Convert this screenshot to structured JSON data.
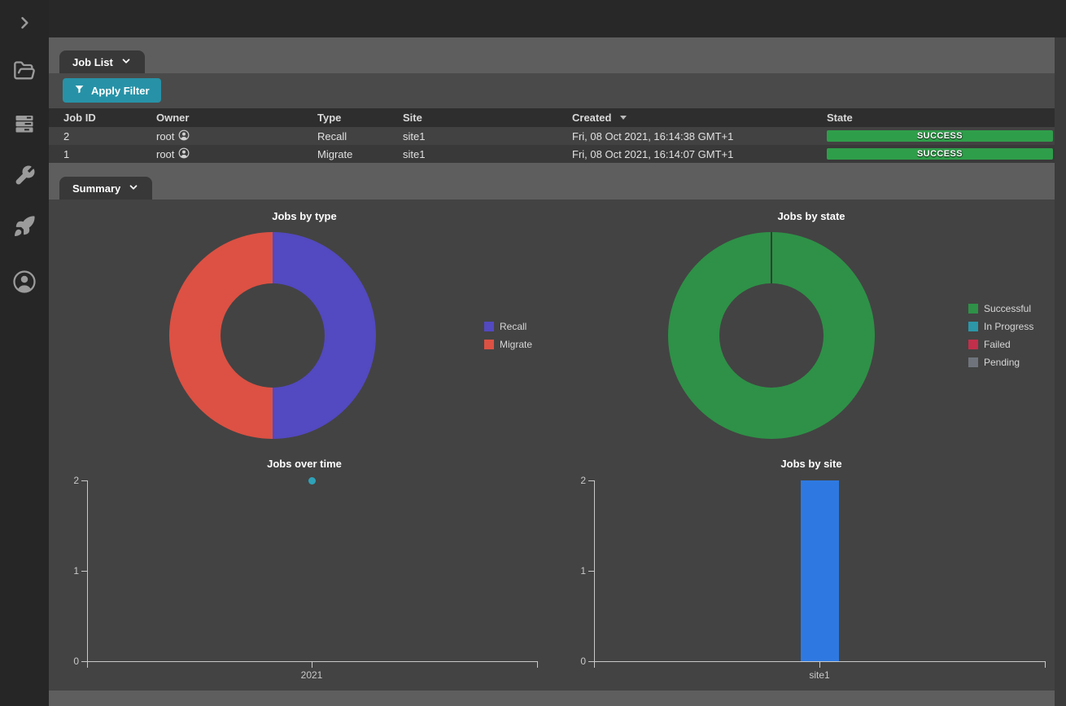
{
  "sidebar": {
    "icons": [
      "expand-chevron",
      "folder-open",
      "server-stack",
      "wrench",
      "rocket",
      "user-circle"
    ]
  },
  "job_list": {
    "tab_label": "Job List",
    "filter_button": "Apply Filter",
    "table": {
      "columns": [
        "Job ID",
        "Owner",
        "Type",
        "Site",
        "Created",
        "State"
      ],
      "sort_column": "Created",
      "sort_direction": "desc",
      "rows": [
        {
          "job_id": "2",
          "owner": "root",
          "type": "Recall",
          "site": "site1",
          "created": "Fri, 08 Oct 2021, 16:14:38 GMT+1",
          "state": "SUCCESS"
        },
        {
          "job_id": "1",
          "owner": "root",
          "type": "Migrate",
          "site": "site1",
          "created": "Fri, 08 Oct 2021, 16:14:07 GMT+1",
          "state": "SUCCESS"
        }
      ]
    }
  },
  "summary": {
    "tab_label": "Summary"
  },
  "chart_data": [
    {
      "type": "pie",
      "donut": true,
      "title": "Jobs by type",
      "labels": [
        "Recall",
        "Migrate"
      ],
      "values": [
        1,
        1
      ],
      "colors": [
        "#5349c0",
        "#dc5143"
      ],
      "legend_position": "right"
    },
    {
      "type": "pie",
      "donut": true,
      "title": "Jobs by state",
      "labels": [
        "Successful",
        "In Progress",
        "Failed",
        "Pending"
      ],
      "values": [
        2,
        0,
        0,
        0
      ],
      "colors": [
        "#2e9147",
        "#2b97a9",
        "#c22f4a",
        "#6f747c"
      ],
      "legend_position": "right"
    },
    {
      "type": "scatter",
      "title": "Jobs over time",
      "x": [
        "2021"
      ],
      "values": [
        2
      ],
      "ylim": [
        0,
        2
      ],
      "yticks": [
        0,
        1,
        2
      ],
      "point_color": "#2ea2b8",
      "xlabel": "",
      "ylabel": "",
      "grid": false
    },
    {
      "type": "bar",
      "title": "Jobs by site",
      "categories": [
        "site1"
      ],
      "values": [
        2
      ],
      "ylim": [
        0,
        2
      ],
      "yticks": [
        0,
        1,
        2
      ],
      "bar_color": "#2e79e1",
      "xlabel": "",
      "ylabel": "",
      "grid": false
    }
  ],
  "colors": {
    "sidebar_bg": "#262626",
    "topbar_bg": "#282828",
    "panel_bg": "#434343",
    "bar_gray": "#5e5e5e",
    "tab_bg": "#383838",
    "accent_teal": "#2792a7",
    "success_green": "#2f9e4a",
    "row_light": "#424242",
    "row_dark": "#393939"
  }
}
